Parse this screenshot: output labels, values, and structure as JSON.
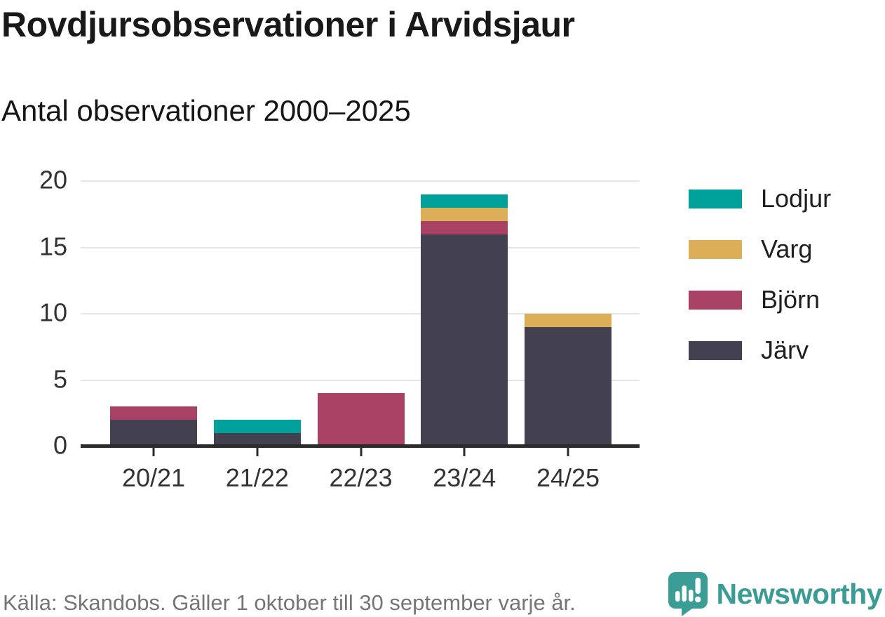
{
  "chart_data": {
    "type": "bar",
    "stacked": true,
    "title": "Rovdjursobservationer i Arvidsjaur",
    "subtitle": "Antal observationer 2000–2025",
    "categories": [
      "20/21",
      "21/22",
      "22/23",
      "23/24",
      "24/25"
    ],
    "series": [
      {
        "name": "Lodjur",
        "color": "#00a09b",
        "values": [
          0,
          1,
          0,
          1,
          0
        ]
      },
      {
        "name": "Varg",
        "color": "#dcae58",
        "values": [
          0,
          0,
          0,
          1,
          1
        ]
      },
      {
        "name": "Björn",
        "color": "#a84163",
        "values": [
          1,
          0,
          4,
          1,
          0
        ]
      },
      {
        "name": "Järv",
        "color": "#434050",
        "values": [
          2,
          1,
          0,
          16,
          9
        ]
      }
    ],
    "stack_order_bottom_to_top": [
      "Järv",
      "Björn",
      "Varg",
      "Lodjur"
    ],
    "totals": [
      3,
      2,
      4,
      19,
      10
    ],
    "xlabel": "",
    "ylabel": "",
    "ylim": [
      0,
      20
    ],
    "yticks": [
      0,
      5,
      10,
      15,
      20
    ],
    "grid": "horizontal",
    "legend_position": "right",
    "grid_color": "#e4e4e4",
    "axis_color": "#2b2b2b"
  },
  "footer": {
    "source": "Källa: Skandobs. Gäller 1 oktober till 30 september varje år.",
    "brand": "Newsworthy",
    "brand_color": "#3a9c95"
  }
}
